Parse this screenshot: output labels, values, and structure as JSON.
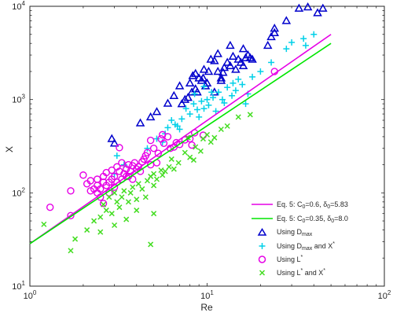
{
  "chart_data": {
    "type": "scatter",
    "x_scale": "log",
    "y_scale": "log",
    "xlabel": "Re",
    "ylabel": "X",
    "xlim": [
      1,
      100
    ],
    "ylim": [
      10,
      10000
    ],
    "grid": false,
    "legend_position": "bottom-right",
    "x_ticks": [
      {
        "value": 1,
        "base": "10",
        "exp": "0"
      },
      {
        "value": 10,
        "base": "10",
        "exp": "1"
      },
      {
        "value": 100,
        "base": "10",
        "exp": "2"
      }
    ],
    "y_ticks": [
      {
        "value": 10,
        "base": "10",
        "exp": "1"
      },
      {
        "value": 100,
        "base": "10",
        "exp": "2"
      },
      {
        "value": 1000,
        "base": "10",
        "exp": "3"
      },
      {
        "value": 10000,
        "base": "10",
        "exp": "4"
      }
    ],
    "lines": [
      {
        "legend": {
          "text": "Eq. 5: C",
          "sub1": "0",
          "mid": "=0.6, δ",
          "sub2": "0",
          "tail": "=5.83"
        },
        "color": "#e600e6",
        "points": [
          [
            1,
            28.5
          ],
          [
            50,
            5000
          ]
        ]
      },
      {
        "legend": {
          "text": "Eq. 5: C",
          "sub1": "0",
          "mid": "=0.35, δ",
          "sub2": "0",
          "tail": "=8.0"
        },
        "color": "#00e600",
        "points": [
          [
            1,
            28.5
          ],
          [
            50,
            4000
          ]
        ]
      }
    ],
    "series": [
      {
        "legend": {
          "text": "Using D",
          "sub": "max",
          "tail": "",
          "sup": ""
        },
        "marker": "triangle",
        "color": "#0000cc",
        "points": [
          [
            2.9,
            380
          ],
          [
            3.0,
            340
          ],
          [
            4.2,
            560
          ],
          [
            5.2,
            740
          ],
          [
            4.8,
            650
          ],
          [
            6.0,
            910
          ],
          [
            6.5,
            1100
          ],
          [
            7.0,
            1400
          ],
          [
            7.5,
            1000
          ],
          [
            8.0,
            1500
          ],
          [
            8.3,
            1800
          ],
          [
            8.6,
            1300
          ],
          [
            9.0,
            1700
          ],
          [
            9.3,
            1600
          ],
          [
            9.6,
            2100
          ],
          [
            10,
            1500
          ],
          [
            10.5,
            2700
          ],
          [
            11,
            2600
          ],
          [
            11.5,
            2000
          ],
          [
            12,
            1700
          ],
          [
            12.5,
            2200
          ],
          [
            13,
            2500
          ],
          [
            13.5,
            2300
          ],
          [
            14,
            2900
          ],
          [
            14.5,
            2100
          ],
          [
            15,
            2700
          ],
          [
            15.5,
            2500
          ],
          [
            16,
            3500
          ],
          [
            16.5,
            2800
          ],
          [
            17,
            3000
          ],
          [
            13.5,
            3800
          ],
          [
            11.5,
            3100
          ],
          [
            22,
            3800
          ],
          [
            23,
            4700
          ],
          [
            24,
            5200
          ],
          [
            24,
            5800
          ],
          [
            28,
            7000
          ],
          [
            33,
            9500
          ],
          [
            37,
            9800
          ],
          [
            42,
            8500
          ],
          [
            45,
            9500
          ],
          [
            8.2,
            1200
          ],
          [
            8.8,
            1200
          ],
          [
            9.8,
            1400
          ],
          [
            7.8,
            1050
          ],
          [
            8.6,
            1900
          ],
          [
            10.2,
            2000
          ],
          [
            16,
            2300
          ],
          [
            18,
            2700
          ],
          [
            12,
            1600
          ],
          [
            11,
            1200
          ],
          [
            17.5,
            2800
          ],
          [
            12.3,
            1950
          ],
          [
            9.5,
            1700
          ],
          [
            7.2,
            900
          ]
        ]
      },
      {
        "legend": {
          "text": "Using D",
          "sub": "max",
          "tail": " and X",
          "sup": "*"
        },
        "marker": "plus",
        "color": "#00d0e8",
        "points": [
          [
            3.0,
            160
          ],
          [
            3.1,
            250
          ],
          [
            3.4,
            200
          ],
          [
            4.6,
            300
          ],
          [
            5.2,
            380
          ],
          [
            5.8,
            430
          ],
          [
            6.0,
            500
          ],
          [
            6.3,
            600
          ],
          [
            6.8,
            520
          ],
          [
            7.2,
            620
          ],
          [
            7.6,
            800
          ],
          [
            8.0,
            700
          ],
          [
            8.4,
            900
          ],
          [
            9.0,
            650
          ],
          [
            9.6,
            800
          ],
          [
            10.2,
            870
          ],
          [
            10.8,
            1050
          ],
          [
            11.6,
            1200
          ],
          [
            12.2,
            1000
          ],
          [
            13,
            1350
          ],
          [
            14,
            1500
          ],
          [
            14.5,
            1250
          ],
          [
            15.8,
            1450
          ],
          [
            16.5,
            900
          ],
          [
            17,
            1150
          ],
          [
            18,
            1750
          ],
          [
            20,
            2000
          ],
          [
            23,
            2500
          ],
          [
            28,
            3500
          ],
          [
            35,
            4500
          ],
          [
            40,
            5000
          ],
          [
            36,
            3800
          ],
          [
            30,
            4100
          ],
          [
            8.8,
            780
          ],
          [
            9.3,
            960
          ],
          [
            10.6,
            1200
          ],
          [
            11.2,
            750
          ],
          [
            12.5,
            920
          ],
          [
            13.8,
            1100
          ],
          [
            15,
            1650
          ],
          [
            7.0,
            480
          ],
          [
            9.6,
            1380
          ],
          [
            8.5,
            1150
          ],
          [
            6.6,
            540
          ],
          [
            5.6,
            350
          ],
          [
            10,
            1000
          ]
        ]
      },
      {
        "legend": {
          "text": "Using L",
          "sub": "",
          "tail": "",
          "sup": "*"
        },
        "marker": "circle",
        "color": "#e600e6",
        "points": [
          [
            1.3,
            70
          ],
          [
            1.7,
            57
          ],
          [
            1.7,
            105
          ],
          [
            2.0,
            155
          ],
          [
            2.1,
            125
          ],
          [
            2.2,
            105
          ],
          [
            2.2,
            135
          ],
          [
            2.3,
            110
          ],
          [
            2.4,
            100
          ],
          [
            2.4,
            120
          ],
          [
            2.4,
            140
          ],
          [
            2.5,
            90
          ],
          [
            2.5,
            110
          ],
          [
            2.6,
            130
          ],
          [
            2.6,
            150
          ],
          [
            2.7,
            120
          ],
          [
            2.7,
            165
          ],
          [
            2.8,
            130
          ],
          [
            2.8,
            100
          ],
          [
            2.9,
            140
          ],
          [
            2.9,
            175
          ],
          [
            3.0,
            115
          ],
          [
            3.0,
            150
          ],
          [
            3.1,
            130
          ],
          [
            3.1,
            190
          ],
          [
            3.2,
            170
          ],
          [
            3.3,
            140
          ],
          [
            3.3,
            210
          ],
          [
            3.4,
            160
          ],
          [
            3.5,
            150
          ],
          [
            3.5,
            180
          ],
          [
            3.6,
            200
          ],
          [
            3.7,
            170
          ],
          [
            3.8,
            140
          ],
          [
            3.8,
            195
          ],
          [
            3.9,
            210
          ],
          [
            4.0,
            180
          ],
          [
            4.1,
            190
          ],
          [
            4.2,
            170
          ],
          [
            4.3,
            215
          ],
          [
            4.4,
            230
          ],
          [
            4.5,
            250
          ],
          [
            4.6,
            270
          ],
          [
            4.8,
            200
          ],
          [
            5.0,
            300
          ],
          [
            5.2,
            210
          ],
          [
            5.5,
            380
          ],
          [
            5.7,
            340
          ],
          [
            6.0,
            400
          ],
          [
            6.2,
            300
          ],
          [
            6.5,
            310
          ],
          [
            7.0,
            330
          ],
          [
            7.5,
            370
          ],
          [
            8.0,
            380
          ],
          [
            8.5,
            440
          ],
          [
            5.6,
            420
          ],
          [
            5.3,
            265
          ],
          [
            3.2,
            305
          ],
          [
            4.8,
            365
          ],
          [
            6.7,
            345
          ],
          [
            8.2,
            325
          ],
          [
            9.5,
            415
          ],
          [
            24,
            2000
          ],
          [
            2.6,
            77
          ],
          [
            3.6,
            150
          ]
        ]
      },
      {
        "legend": {
          "text": "Using L",
          "sub": "",
          "tail": " and X",
          "sup": "*"
        },
        "marker": "x",
        "color": "#44dd22",
        "points": [
          [
            1.2,
            46
          ],
          [
            1.7,
            24
          ],
          [
            1.8,
            32
          ],
          [
            2.1,
            40
          ],
          [
            2.3,
            50
          ],
          [
            2.5,
            55
          ],
          [
            2.6,
            75
          ],
          [
            2.7,
            65
          ],
          [
            2.8,
            90
          ],
          [
            2.9,
            60
          ],
          [
            3.0,
            100
          ],
          [
            3.1,
            80
          ],
          [
            3.2,
            70
          ],
          [
            3.3,
            90
          ],
          [
            3.4,
            105
          ],
          [
            3.6,
            80
          ],
          [
            3.7,
            100
          ],
          [
            3.8,
            115
          ],
          [
            4.0,
            65
          ],
          [
            4.1,
            125
          ],
          [
            4.3,
            110
          ],
          [
            4.5,
            90
          ],
          [
            4.6,
            135
          ],
          [
            4.8,
            150
          ],
          [
            5.0,
            120
          ],
          [
            5.0,
            160
          ],
          [
            5.2,
            140
          ],
          [
            5.5,
            175
          ],
          [
            5.8,
            170
          ],
          [
            6.1,
            190
          ],
          [
            6.5,
            180
          ],
          [
            6.9,
            210
          ],
          [
            7.5,
            270
          ],
          [
            8.0,
            240
          ],
          [
            8.6,
            310
          ],
          [
            9.2,
            280
          ],
          [
            10.0,
            420
          ],
          [
            10.5,
            350
          ],
          [
            11.0,
            390
          ],
          [
            12.0,
            480
          ],
          [
            13.0,
            520
          ],
          [
            15.0,
            650
          ],
          [
            17.5,
            690
          ],
          [
            3.5,
            52
          ],
          [
            4.0,
            85
          ],
          [
            4.8,
            28
          ],
          [
            5.0,
            60
          ],
          [
            2.5,
            38
          ],
          [
            3.0,
            45
          ],
          [
            5.6,
            155
          ],
          [
            6.3,
            230
          ],
          [
            7.8,
            390
          ],
          [
            8.4,
            225
          ],
          [
            9.5,
            380
          ]
        ]
      }
    ]
  }
}
